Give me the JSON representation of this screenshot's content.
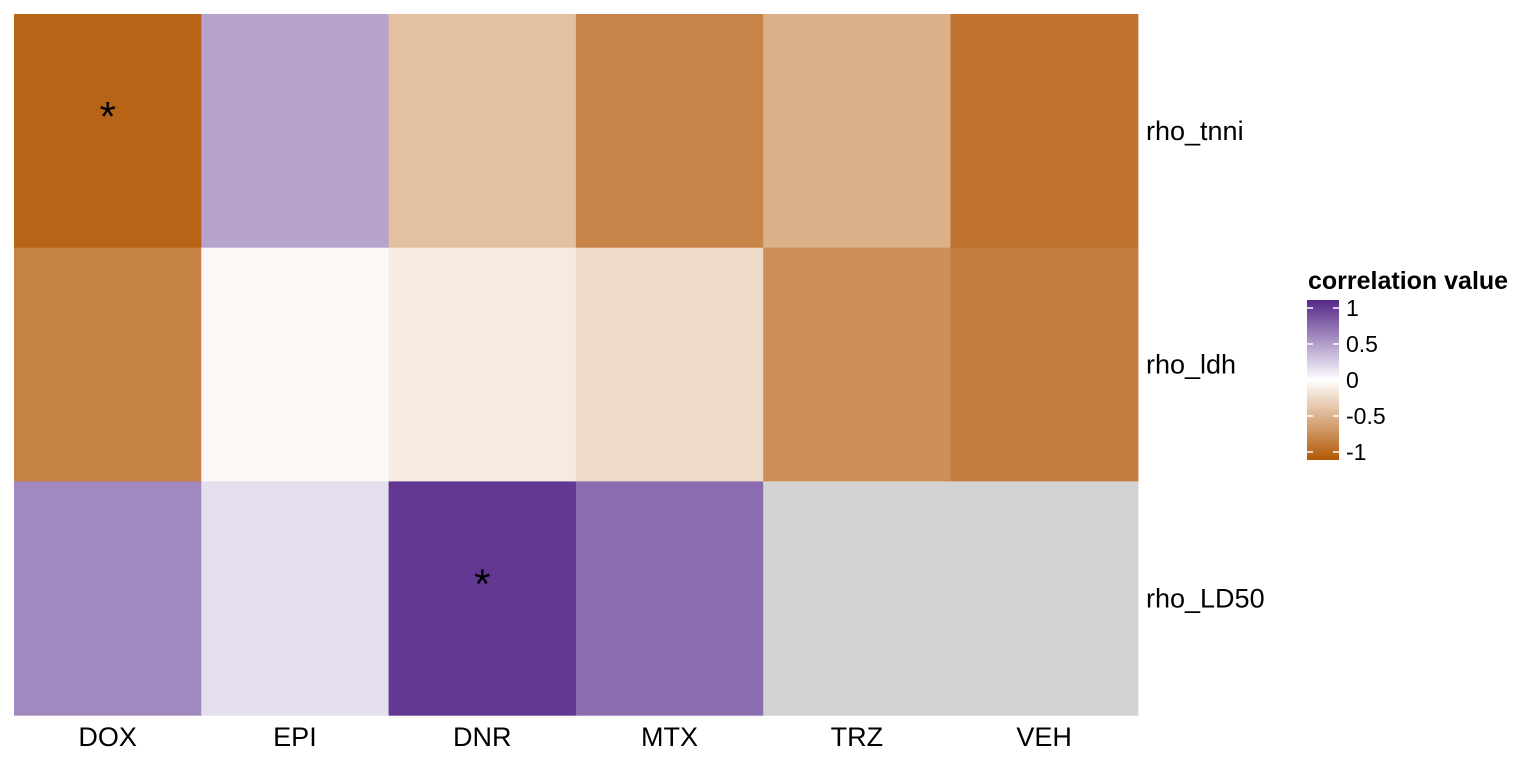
{
  "chart_data": {
    "type": "heatmap",
    "title": "",
    "xlabel": "",
    "ylabel": "",
    "columns": [
      "DOX",
      "EPI",
      "DNR",
      "MTX",
      "TRZ",
      "VEH"
    ],
    "rows": [
      "rho_tnni",
      "rho_ldh",
      "rho_LD50"
    ],
    "values": [
      [
        -0.93,
        0.42,
        -0.38,
        -0.73,
        -0.47,
        -0.83
      ],
      [
        -0.75,
        -0.04,
        -0.12,
        -0.22,
        -0.67,
        -0.77
      ],
      [
        0.55,
        0.15,
        0.92,
        0.68,
        null,
        null
      ]
    ],
    "significance": [
      [
        "*",
        "",
        "",
        "",
        "",
        ""
      ],
      [
        "",
        "",
        "",
        "",
        "",
        ""
      ],
      [
        "",
        "",
        "*",
        "",
        "",
        ""
      ]
    ],
    "na_color": "#d3d3d3",
    "color_scale": {
      "low": "#b35806",
      "mid": "#ffffff",
      "high": "#542788",
      "limits": [
        -1,
        1
      ]
    },
    "legend": {
      "title": "correlation value",
      "ticks": [
        {
          "value": 1,
          "label": "1"
        },
        {
          "value": 0.5,
          "label": "0.5"
        },
        {
          "value": 0,
          "label": "0"
        },
        {
          "value": -0.5,
          "label": "-0.5"
        },
        {
          "value": -1,
          "label": "-1"
        }
      ],
      "placement": "right"
    }
  }
}
